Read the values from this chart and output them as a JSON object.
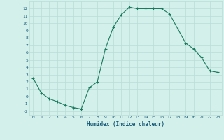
{
  "x": [
    0,
    1,
    2,
    3,
    4,
    5,
    6,
    7,
    8,
    9,
    10,
    11,
    12,
    13,
    14,
    15,
    16,
    17,
    18,
    19,
    20,
    21,
    22,
    23
  ],
  "y": [
    2.5,
    0.5,
    -0.3,
    -0.7,
    -1.2,
    -1.5,
    -1.7,
    1.2,
    2.0,
    6.5,
    9.5,
    11.2,
    12.2,
    12.0,
    12.0,
    12.0,
    12.0,
    11.3,
    9.3,
    7.3,
    6.5,
    5.3,
    3.5,
    3.3
  ],
  "xlabel": "Humidex (Indice chaleur)",
  "xlim": [
    -0.5,
    23.5
  ],
  "ylim": [
    -2.5,
    13.0
  ],
  "yticks": [
    -2,
    -1,
    0,
    1,
    2,
    3,
    4,
    5,
    6,
    7,
    8,
    9,
    10,
    11,
    12
  ],
  "xticks": [
    0,
    1,
    2,
    3,
    4,
    5,
    6,
    7,
    8,
    9,
    10,
    11,
    12,
    13,
    14,
    15,
    16,
    17,
    18,
    19,
    20,
    21,
    22,
    23
  ],
  "line_color": "#1a7a5e",
  "marker": "+",
  "bg_color": "#d4f0eb",
  "grid_color": "#b8ddd8",
  "label_color": "#1a5c7a"
}
